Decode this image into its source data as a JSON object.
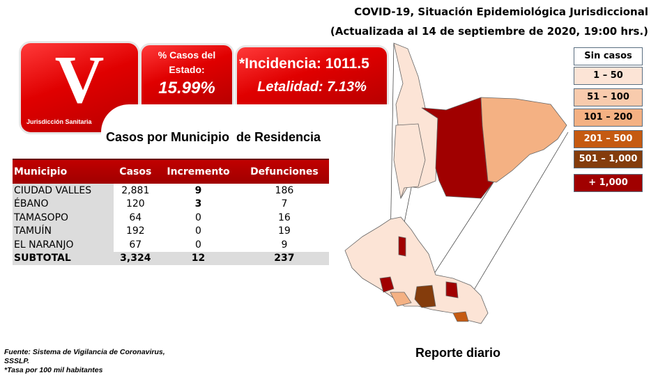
{
  "header": {
    "title_line1": "COVID-19, Situación Epidemiológica Jurisdiccional",
    "title_line2": "(Actualizada al 14 de septiembre de 2020, 19:00 hrs.)"
  },
  "logo": {
    "letter": "V",
    "label": "Jurisdicción Sanitaria"
  },
  "state_share": {
    "label": "% Casos del Estado:",
    "value": "15.99%"
  },
  "rates": {
    "incidence": "*Incidencia: 1011.5",
    "lethality": "Letalidad: 7.13%"
  },
  "table": {
    "title": "Casos por Municipio  de Residencia",
    "headers": [
      "Municipio",
      "Casos",
      "Incremento",
      "Defunciones"
    ],
    "rows": [
      [
        "CIUDAD VALLES",
        "2,881",
        "9",
        "186"
      ],
      [
        "ÉBANO",
        "120",
        "3",
        "7"
      ],
      [
        "TAMASOPO",
        "64",
        "0",
        "16"
      ],
      [
        "TAMUÍN",
        "192",
        "0",
        "19"
      ],
      [
        "EL NARANJO",
        "67",
        "0",
        "9"
      ]
    ],
    "subtotal": [
      "SUBTOTAL",
      "3,324",
      "12",
      "237"
    ]
  },
  "legend": [
    {
      "label": "Sin casos",
      "color": "#ffffff",
      "text": "#000000"
    },
    {
      "label": "1 – 50",
      "color": "#fce4d6",
      "text": "#000000"
    },
    {
      "label": "51 – 100",
      "color": "#f8cbad",
      "text": "#000000"
    },
    {
      "label": "101 – 200",
      "color": "#f4b183",
      "text": "#000000"
    },
    {
      "label": "201 – 500",
      "color": "#c55a11",
      "text": "#ffffff"
    },
    {
      "label": "501 – 1,000",
      "color": "#843c0c",
      "text": "#ffffff"
    },
    {
      "label": "+ 1,000",
      "color": "#a00000",
      "text": "#ffffff"
    }
  ],
  "footer": {
    "line1": "Fuente: Sistema de Vigilancia  de Coronavirus,",
    "line2": "SSSLP.",
    "line3": "*Tasa por 100 mil habitantes"
  },
  "report_label": "Reporte diario"
}
